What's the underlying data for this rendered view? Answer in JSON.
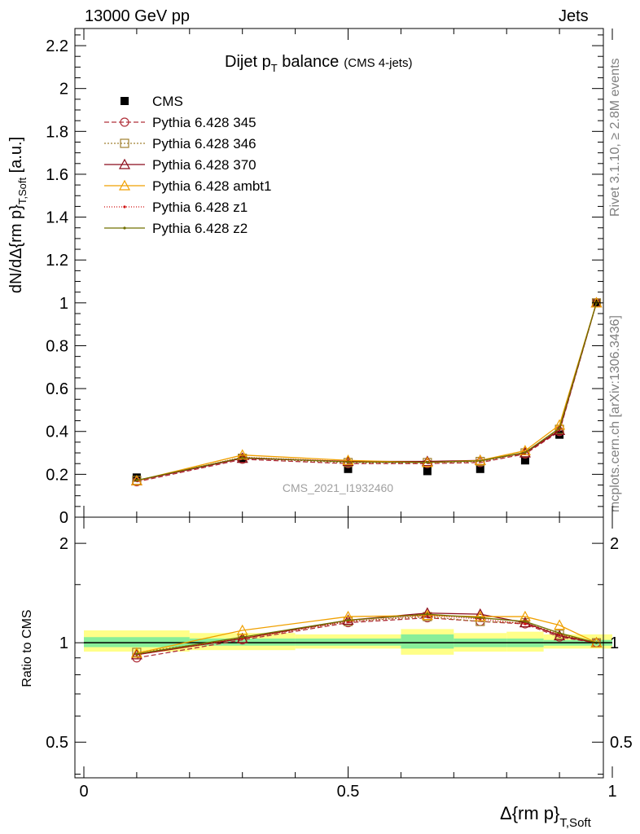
{
  "header": {
    "left": "13000 GeV pp",
    "right": "Jets"
  },
  "side_labels": {
    "rivet": "Rivet 3.1.10, ≥ 2.8M events",
    "mcplots": "mcplots.cern.ch [arXiv:1306.3436]"
  },
  "watermark": "CMS_2021_I1932460",
  "chart_data": [
    {
      "type": "line",
      "panel": "main",
      "title": "Dijet p_T balance",
      "title_main": "Dijet p",
      "title_sub": "T",
      "title_rest": " balance",
      "title_note": "(CMS 4-jets)",
      "ylabel": "dN/dΔ{rm p}_{T,Soft} [a.u.]",
      "ylabel_main": "dN/dΔ{rm p}",
      "ylabel_sub": "T,Soft",
      "ylabel_unit": " [a.u.]",
      "xlim": [
        0,
        1
      ],
      "ylim": [
        0,
        2.28
      ],
      "y_ticks": [
        0,
        0.2,
        0.4,
        0.6,
        0.8,
        1,
        1.2,
        1.4,
        1.6,
        1.8,
        2,
        2.2
      ],
      "y_tick_labels": [
        "0",
        "0.2",
        "0.4",
        "0.6",
        "0.8",
        "1",
        "1.2",
        "1.4",
        "1.6",
        "1.8",
        "2",
        "2.2"
      ],
      "x": [
        0.1,
        0.3,
        0.5,
        0.65,
        0.75,
        0.835,
        0.9,
        0.97
      ],
      "legend_position": "top-left",
      "series": [
        {
          "name": "CMS",
          "color": "#000000",
          "dash": "",
          "marker": "square-filled",
          "values": [
            0.185,
            0.275,
            0.225,
            0.215,
            0.225,
            0.265,
            0.385,
            1.0
          ]
        },
        {
          "name": "Pythia 6.428 345",
          "color": "#b0303a",
          "dash": "6,3",
          "marker": "circle-open",
          "values": [
            0.165,
            0.27,
            0.25,
            0.25,
            0.255,
            0.295,
            0.4,
            1.0
          ]
        },
        {
          "name": "Pythia 6.428 346",
          "color": "#a08030",
          "dash": "2,2",
          "marker": "square-open",
          "values": [
            0.172,
            0.275,
            0.255,
            0.255,
            0.26,
            0.3,
            0.41,
            1.0
          ]
        },
        {
          "name": "Pythia 6.428 370",
          "color": "#8b0a1a",
          "dash": "",
          "marker": "triangle-open",
          "values": [
            0.17,
            0.275,
            0.26,
            0.26,
            0.265,
            0.3,
            0.405,
            1.0
          ]
        },
        {
          "name": "Pythia 6.428 ambt1",
          "color": "#f0a000",
          "dash": "",
          "marker": "triangle-open",
          "values": [
            0.17,
            0.29,
            0.265,
            0.255,
            0.265,
            0.31,
            0.43,
            1.0
          ]
        },
        {
          "name": "Pythia 6.428 z1",
          "color": "#d01010",
          "dash": "1,2",
          "marker": "dot",
          "values": [
            0.17,
            0.28,
            0.26,
            0.255,
            0.262,
            0.3,
            0.41,
            1.0
          ]
        },
        {
          "name": "Pythia 6.428 z2",
          "color": "#707000",
          "dash": "",
          "marker": "dot",
          "values": [
            0.172,
            0.278,
            0.258,
            0.256,
            0.263,
            0.302,
            0.415,
            1.0
          ]
        }
      ]
    },
    {
      "type": "line",
      "panel": "ratio",
      "ylabel": "Ratio to CMS",
      "xlabel": "Δ{rm p}_{T,Soft}",
      "xlabel_main": "Δ{rm p}",
      "xlabel_sub": "T,Soft",
      "xlim": [
        0,
        1
      ],
      "ylim": [
        0.39,
        2.4
      ],
      "log_y": true,
      "y_ticks": [
        0.5,
        1,
        2
      ],
      "y_tick_labels": [
        "0.5",
        "1",
        "2"
      ],
      "x_ticks": [
        0,
        0.5,
        1
      ],
      "x_tick_labels": [
        "0",
        "0.5",
        "1"
      ],
      "x": [
        0.1,
        0.3,
        0.5,
        0.65,
        0.75,
        0.835,
        0.9,
        0.97
      ],
      "bands": [
        {
          "x0": 0.0,
          "x1": 0.2,
          "green": [
            0.97,
            1.04
          ],
          "yellow": [
            0.94,
            1.09
          ]
        },
        {
          "x0": 0.2,
          "x1": 0.4,
          "green": [
            0.98,
            1.03
          ],
          "yellow": [
            0.95,
            1.07
          ]
        },
        {
          "x0": 0.4,
          "x1": 0.6,
          "green": [
            0.98,
            1.03
          ],
          "yellow": [
            0.96,
            1.06
          ]
        },
        {
          "x0": 0.6,
          "x1": 0.7,
          "green": [
            0.96,
            1.06
          ],
          "yellow": [
            0.92,
            1.1
          ]
        },
        {
          "x0": 0.7,
          "x1": 0.8,
          "green": [
            0.97,
            1.03
          ],
          "yellow": [
            0.94,
            1.07
          ]
        },
        {
          "x0": 0.8,
          "x1": 0.87,
          "green": [
            0.97,
            1.03
          ],
          "yellow": [
            0.94,
            1.08
          ]
        },
        {
          "x0": 0.87,
          "x1": 1.0,
          "green": [
            0.98,
            1.02
          ],
          "yellow": [
            0.96,
            1.06
          ]
        }
      ],
      "series": [
        {
          "name": "Pythia 6.428 345",
          "color": "#b0303a",
          "dash": "6,3",
          "marker": "circle-open",
          "values": [
            0.9,
            1.02,
            1.15,
            1.19,
            1.16,
            1.14,
            1.04,
            1.0
          ]
        },
        {
          "name": "Pythia 6.428 346",
          "color": "#a08030",
          "dash": "2,2",
          "marker": "square-open",
          "values": [
            0.935,
            1.03,
            1.16,
            1.2,
            1.16,
            1.15,
            1.06,
            1.0
          ]
        },
        {
          "name": "Pythia 6.428 370",
          "color": "#8b0a1a",
          "dash": "",
          "marker": "triangle-open",
          "values": [
            0.92,
            1.03,
            1.17,
            1.23,
            1.22,
            1.15,
            1.05,
            1.0
          ]
        },
        {
          "name": "Pythia 6.428 ambt1",
          "color": "#f0a000",
          "dash": "",
          "marker": "triangle-open",
          "values": [
            0.93,
            1.09,
            1.2,
            1.21,
            1.2,
            1.2,
            1.13,
            1.0
          ]
        },
        {
          "name": "Pythia 6.428 z1",
          "color": "#d01010",
          "dash": "1,2",
          "marker": "dot",
          "values": [
            0.92,
            1.03,
            1.16,
            1.21,
            1.18,
            1.14,
            1.06,
            1.0
          ]
        },
        {
          "name": "Pythia 6.428 z2",
          "color": "#707000",
          "dash": "",
          "marker": "dot",
          "values": [
            0.925,
            1.04,
            1.17,
            1.22,
            1.19,
            1.16,
            1.07,
            1.0
          ]
        }
      ]
    }
  ]
}
